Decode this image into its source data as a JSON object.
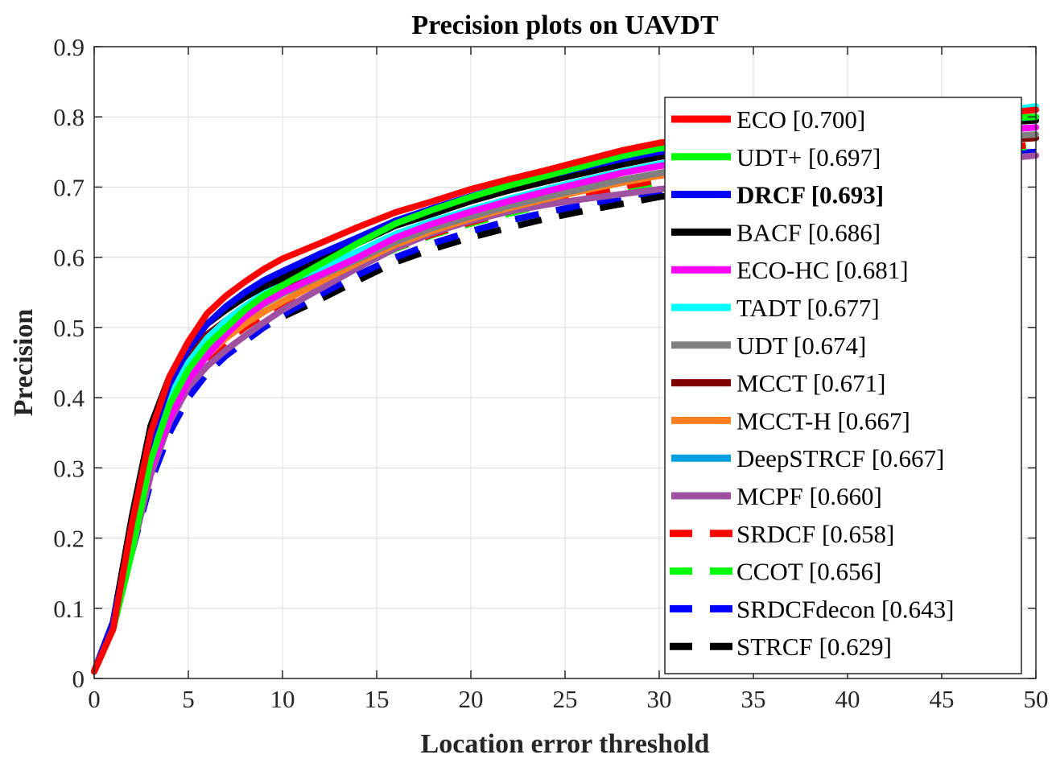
{
  "chart_data": {
    "type": "line",
    "title": "Precision plots on UAVDT",
    "xlabel": "Location error threshold",
    "ylabel": "Precision",
    "xlim": [
      0,
      50
    ],
    "ylim": [
      0,
      0.9
    ],
    "xticks": [
      "0",
      "5",
      "10",
      "15",
      "20",
      "25",
      "30",
      "35",
      "40",
      "45",
      "50"
    ],
    "yticks": [
      "0",
      "0.1",
      "0.2",
      "0.3",
      "0.4",
      "0.5",
      "0.6",
      "0.7",
      "0.8",
      "0.9"
    ],
    "grid": true,
    "legend_position": "right",
    "x": [
      0,
      1,
      2,
      3,
      4,
      5,
      6,
      7,
      8,
      9,
      10,
      12,
      14,
      16,
      18,
      20,
      22,
      24,
      26,
      28,
      30,
      35,
      40,
      45,
      50
    ],
    "series": [
      {
        "name": "ECO [0.700]",
        "color": "#ff0000",
        "dash": false,
        "bold": false,
        "values": [
          0.01,
          0.07,
          0.22,
          0.35,
          0.43,
          0.48,
          0.52,
          0.545,
          0.565,
          0.583,
          0.598,
          0.62,
          0.643,
          0.664,
          0.68,
          0.697,
          0.711,
          0.724,
          0.738,
          0.752,
          0.763,
          0.778,
          0.788,
          0.797,
          0.81
        ]
      },
      {
        "name": "UDT+ [0.697]",
        "color": "#00ff00",
        "dash": false,
        "bold": false,
        "values": [
          0.01,
          0.07,
          0.18,
          0.31,
          0.39,
          0.44,
          0.475,
          0.5,
          0.525,
          0.545,
          0.56,
          0.59,
          0.62,
          0.648,
          0.668,
          0.686,
          0.702,
          0.716,
          0.73,
          0.744,
          0.755,
          0.772,
          0.783,
          0.792,
          0.8
        ]
      },
      {
        "name": "DRCF [0.693]",
        "color": "#0000ff",
        "dash": false,
        "bold": true,
        "values": [
          0.01,
          0.08,
          0.21,
          0.34,
          0.42,
          0.47,
          0.505,
          0.53,
          0.55,
          0.567,
          0.58,
          0.605,
          0.628,
          0.652,
          0.67,
          0.687,
          0.702,
          0.716,
          0.728,
          0.74,
          0.75,
          0.768,
          0.78,
          0.79,
          0.8
        ]
      },
      {
        "name": "BACF [0.686]",
        "color": "#000000",
        "dash": false,
        "bold": false,
        "values": [
          0.01,
          0.08,
          0.23,
          0.36,
          0.43,
          0.475,
          0.505,
          0.525,
          0.543,
          0.558,
          0.57,
          0.595,
          0.62,
          0.645,
          0.662,
          0.68,
          0.695,
          0.708,
          0.72,
          0.732,
          0.743,
          0.762,
          0.776,
          0.787,
          0.795
        ]
      },
      {
        "name": "ECO-HC [0.681]",
        "color": "#ff00ff",
        "dash": false,
        "bold": false,
        "values": [
          0.01,
          0.07,
          0.19,
          0.3,
          0.37,
          0.425,
          0.46,
          0.49,
          0.515,
          0.535,
          0.55,
          0.575,
          0.6,
          0.628,
          0.648,
          0.665,
          0.68,
          0.694,
          0.707,
          0.72,
          0.73,
          0.75,
          0.765,
          0.775,
          0.785
        ]
      },
      {
        "name": "TADT [0.677]",
        "color": "#00ffff",
        "dash": false,
        "bold": false,
        "values": [
          0.01,
          0.07,
          0.2,
          0.32,
          0.4,
          0.45,
          0.485,
          0.51,
          0.53,
          0.548,
          0.562,
          0.585,
          0.608,
          0.633,
          0.652,
          0.668,
          0.683,
          0.697,
          0.71,
          0.722,
          0.733,
          0.755,
          0.775,
          0.795,
          0.815
        ]
      },
      {
        "name": "UDT [0.674]",
        "color": "#808080",
        "dash": false,
        "bold": false,
        "values": [
          0.01,
          0.07,
          0.19,
          0.31,
          0.385,
          0.435,
          0.47,
          0.495,
          0.515,
          0.533,
          0.548,
          0.573,
          0.597,
          0.622,
          0.642,
          0.658,
          0.673,
          0.686,
          0.698,
          0.71,
          0.72,
          0.74,
          0.755,
          0.765,
          0.775
        ]
      },
      {
        "name": "MCCT [0.671]",
        "color": "#800000",
        "dash": false,
        "bold": false,
        "values": [
          0.01,
          0.08,
          0.21,
          0.34,
          0.415,
          0.46,
          0.49,
          0.51,
          0.53,
          0.546,
          0.56,
          0.585,
          0.608,
          0.63,
          0.647,
          0.662,
          0.675,
          0.688,
          0.7,
          0.71,
          0.72,
          0.738,
          0.752,
          0.762,
          0.77
        ]
      },
      {
        "name": "MCCT-H [0.667]",
        "color": "#ff8020",
        "dash": false,
        "bold": false,
        "values": [
          0.01,
          0.07,
          0.19,
          0.3,
          0.375,
          0.425,
          0.46,
          0.485,
          0.505,
          0.522,
          0.537,
          0.565,
          0.592,
          0.618,
          0.638,
          0.655,
          0.67,
          0.683,
          0.695,
          0.706,
          0.716,
          0.735,
          0.75,
          0.76,
          0.77
        ]
      },
      {
        "name": "DeepSTRCF [0.667]",
        "color": "#00a0e0",
        "dash": false,
        "bold": false,
        "values": [
          0.01,
          0.08,
          0.21,
          0.33,
          0.405,
          0.45,
          0.485,
          0.51,
          0.53,
          0.548,
          0.562,
          0.583,
          0.603,
          0.625,
          0.643,
          0.658,
          0.672,
          0.685,
          0.697,
          0.708,
          0.718,
          0.738,
          0.752,
          0.762,
          0.77
        ]
      },
      {
        "name": "MCPF [0.660]",
        "color": "#a050a0",
        "dash": false,
        "bold": false,
        "values": [
          0.01,
          0.07,
          0.18,
          0.29,
          0.365,
          0.415,
          0.445,
          0.468,
          0.488,
          0.507,
          0.525,
          0.555,
          0.585,
          0.613,
          0.635,
          0.652,
          0.665,
          0.675,
          0.683,
          0.69,
          0.697,
          0.71,
          0.722,
          0.733,
          0.745
        ]
      },
      {
        "name": "SRDCF [0.658]",
        "color": "#ff0000",
        "dash": true,
        "bold": false,
        "values": [
          0.01,
          0.07,
          0.19,
          0.3,
          0.37,
          0.42,
          0.455,
          0.48,
          0.5,
          0.518,
          0.533,
          0.56,
          0.587,
          0.613,
          0.633,
          0.65,
          0.665,
          0.678,
          0.69,
          0.7,
          0.71,
          0.728,
          0.742,
          0.752,
          0.76
        ]
      },
      {
        "name": "CCOT [0.656]",
        "color": "#00ff00",
        "dash": true,
        "bold": false,
        "values": [
          0.01,
          0.07,
          0.19,
          0.3,
          0.37,
          0.42,
          0.455,
          0.48,
          0.5,
          0.518,
          0.533,
          0.56,
          0.587,
          0.612,
          0.632,
          0.648,
          0.662,
          0.675,
          0.686,
          0.697,
          0.707,
          0.725,
          0.74,
          0.75,
          0.758
        ]
      },
      {
        "name": "SRDCFdecon [0.643]",
        "color": "#0000ff",
        "dash": true,
        "bold": false,
        "values": [
          0.01,
          0.07,
          0.18,
          0.28,
          0.35,
          0.4,
          0.435,
          0.46,
          0.48,
          0.5,
          0.518,
          0.547,
          0.575,
          0.6,
          0.62,
          0.637,
          0.652,
          0.664,
          0.675,
          0.685,
          0.695,
          0.715,
          0.73,
          0.742,
          0.75
        ]
      },
      {
        "name": "STRCF [0.629]",
        "color": "#000000",
        "dash": true,
        "bold": false,
        "values": [
          0.01,
          0.07,
          0.18,
          0.28,
          0.35,
          0.4,
          0.435,
          0.46,
          0.48,
          0.5,
          0.515,
          0.54,
          0.567,
          0.593,
          0.612,
          0.628,
          0.642,
          0.655,
          0.666,
          0.676,
          0.686,
          0.705,
          0.722,
          0.736,
          0.748
        ]
      }
    ]
  }
}
